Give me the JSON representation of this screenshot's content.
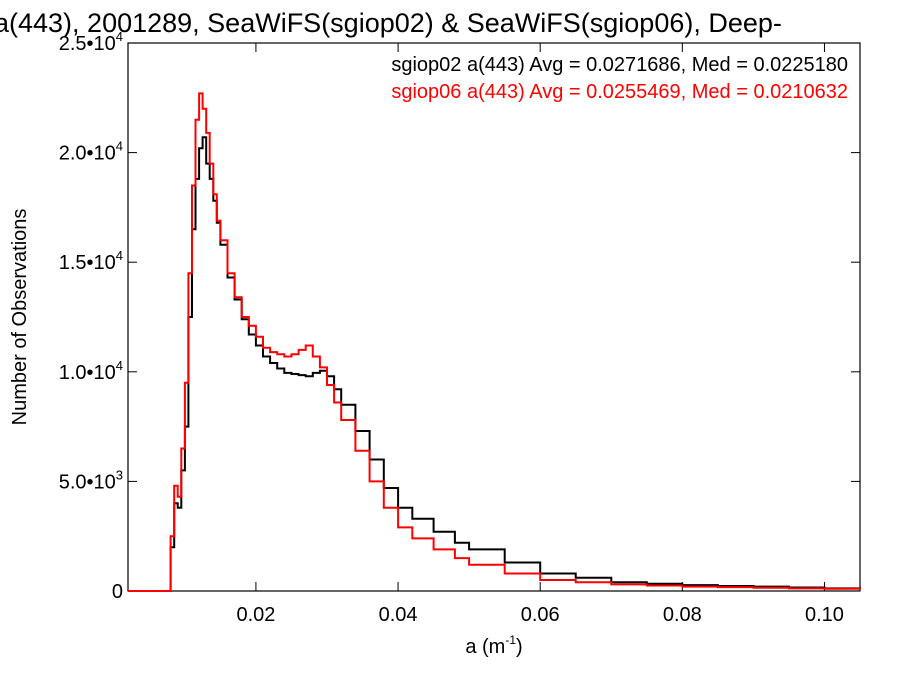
{
  "chart_data": {
    "type": "line",
    "step": true,
    "title": "a(443), 2001289, SeaWiFS(sgiop02) & SeaWiFS(sgiop06), Deep-",
    "xlabel": "a (m",
    "xlabel_sup": "-1",
    "xlabel_close": ")",
    "ylabel": "Number of Observations",
    "xlim": [
      0.002,
      0.105
    ],
    "ylim": [
      0,
      25000
    ],
    "x_ticks": [
      {
        "value": 0.02,
        "label": "0.02"
      },
      {
        "value": 0.04,
        "label": "0.04"
      },
      {
        "value": 0.06,
        "label": "0.06"
      },
      {
        "value": 0.08,
        "label": "0.08"
      },
      {
        "value": 0.1,
        "label": "0.10"
      }
    ],
    "y_ticks": [
      {
        "value": 0,
        "mant": "0",
        "exp": ""
      },
      {
        "value": 5000,
        "mant": "5.0•10",
        "exp": "3"
      },
      {
        "value": 10000,
        "mant": "1.0•10",
        "exp": "4"
      },
      {
        "value": 15000,
        "mant": "1.5•10",
        "exp": "4"
      },
      {
        "value": 20000,
        "mant": "2.0•10",
        "exp": "4"
      },
      {
        "value": 25000,
        "mant": "2.5•10",
        "exp": "4"
      }
    ],
    "legend_position": "top-right",
    "series": [
      {
        "name": "sgiop02 a(443) Avg = 0.0271686, Med = 0.0225180",
        "color": "#000000",
        "x": [
          0.002,
          0.0075,
          0.008,
          0.0085,
          0.009,
          0.0095,
          0.01,
          0.0105,
          0.011,
          0.0115,
          0.012,
          0.0125,
          0.013,
          0.0135,
          0.014,
          0.0145,
          0.015,
          0.016,
          0.017,
          0.018,
          0.019,
          0.02,
          0.021,
          0.022,
          0.023,
          0.024,
          0.025,
          0.026,
          0.027,
          0.028,
          0.029,
          0.03,
          0.031,
          0.032,
          0.034,
          0.036,
          0.038,
          0.04,
          0.042,
          0.045,
          0.048,
          0.05,
          0.055,
          0.06,
          0.065,
          0.07,
          0.075,
          0.08,
          0.085,
          0.09,
          0.095,
          0.1,
          0.105
        ],
        "y": [
          0,
          0,
          2000,
          4000,
          3800,
          5500,
          7500,
          12500,
          16500,
          18800,
          20200,
          20700,
          19500,
          18800,
          17800,
          16800,
          15800,
          14300,
          13300,
          12400,
          11700,
          11200,
          10700,
          10400,
          10150,
          9950,
          9900,
          9850,
          9800,
          9950,
          10050,
          9800,
          9200,
          8500,
          7300,
          6000,
          4700,
          3800,
          3300,
          2700,
          2200,
          1900,
          1300,
          800,
          600,
          400,
          330,
          270,
          230,
          200,
          160,
          120,
          90
        ]
      },
      {
        "name": "sgiop06 a(443) Avg = 0.0255469, Med = 0.0210632",
        "color": "#ff0000",
        "x": [
          0.002,
          0.0075,
          0.008,
          0.0085,
          0.009,
          0.0095,
          0.01,
          0.0105,
          0.011,
          0.0115,
          0.012,
          0.0125,
          0.013,
          0.0135,
          0.014,
          0.0145,
          0.015,
          0.016,
          0.017,
          0.018,
          0.019,
          0.02,
          0.021,
          0.022,
          0.023,
          0.024,
          0.025,
          0.026,
          0.027,
          0.028,
          0.029,
          0.03,
          0.031,
          0.032,
          0.034,
          0.036,
          0.038,
          0.04,
          0.042,
          0.045,
          0.048,
          0.05,
          0.055,
          0.06,
          0.065,
          0.07,
          0.075,
          0.08,
          0.085,
          0.09,
          0.095,
          0.1,
          0.105
        ],
        "y": [
          0,
          0,
          2500,
          4800,
          4300,
          6500,
          9500,
          14500,
          18500,
          21500,
          22700,
          22000,
          20900,
          19500,
          18100,
          16900,
          16000,
          14500,
          13400,
          12500,
          12100,
          11600,
          11100,
          10900,
          10800,
          10700,
          10800,
          11000,
          11200,
          10700,
          10200,
          9400,
          8600,
          7800,
          6400,
          5000,
          3800,
          2900,
          2400,
          1900,
          1500,
          1200,
          800,
          500,
          400,
          300,
          250,
          200,
          180,
          150,
          120,
          100,
          80
        ]
      }
    ]
  }
}
